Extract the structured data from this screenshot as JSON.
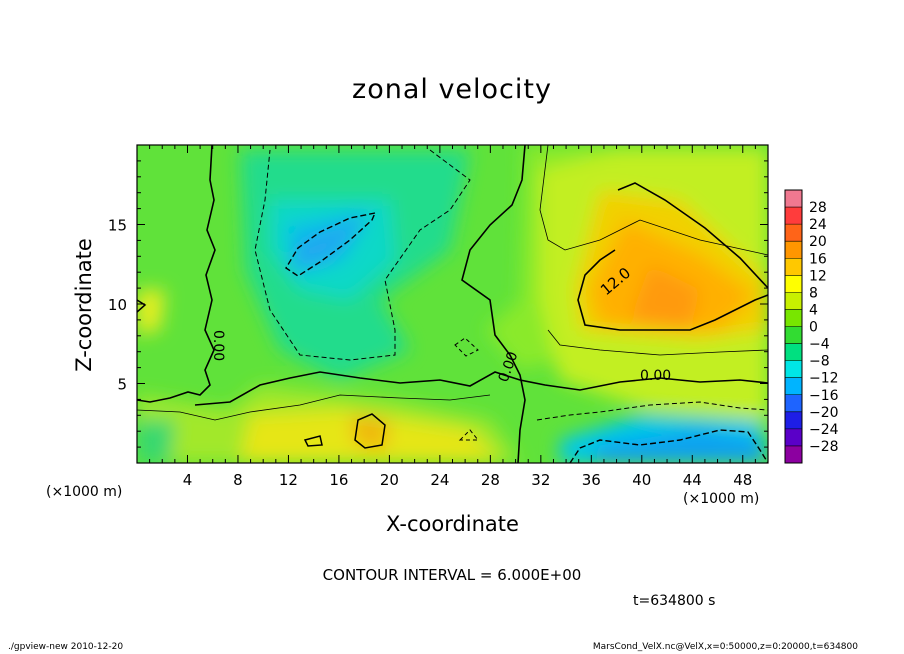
{
  "chart_data": {
    "type": "heatmap",
    "title": "zonal velocity",
    "xlabel": "X-coordinate",
    "ylabel": "Z-coordinate",
    "x_unit_label": "(×1000 m)",
    "xlim": [
      0,
      50
    ],
    "ylim": [
      0,
      20
    ],
    "x_ticks": [
      "4",
      "8",
      "12",
      "16",
      "20",
      "24",
      "28",
      "32",
      "36",
      "40",
      "44",
      "48"
    ],
    "x_tick_values": [
      4,
      8,
      12,
      16,
      20,
      24,
      28,
      32,
      36,
      40,
      44,
      48
    ],
    "y_ticks": [
      "5",
      "10",
      "15"
    ],
    "y_tick_values": [
      5,
      10,
      15
    ],
    "colorbar": {
      "labels": [
        "28",
        "24",
        "20",
        "16",
        "12",
        "8",
        "4",
        "0",
        "−4",
        "−8",
        "−12",
        "−16",
        "−20",
        "−24",
        "−28"
      ],
      "colors": [
        "#f07890",
        "#ff3c3c",
        "#ff6418",
        "#ff9600",
        "#ffc800",
        "#ffff00",
        "#c8f000",
        "#78e600",
        "#32dc32",
        "#00e080",
        "#00e6e6",
        "#00b4ff",
        "#1e64ff",
        "#1e1ee6",
        "#5a00c8",
        "#8c00a0"
      ]
    },
    "contour_labels": [
      "12.0",
      "0.00",
      "0.00",
      "0.00",
      "0.00"
    ],
    "contour_interval": "CONTOUR INTERVAL = 6.000E+00",
    "time": "t=634800 s",
    "features": [
      {
        "name": "positive-core",
        "x": 42,
        "z": 11,
        "value": 16
      },
      {
        "name": "negative-core-upper",
        "x": 15,
        "z": 14,
        "value": -10
      },
      {
        "name": "negative-core-lower",
        "x": 43,
        "z": 1.5,
        "value": -14
      },
      {
        "name": "positive-core-lower",
        "x": 18.5,
        "z": 2,
        "value": 12
      }
    ]
  },
  "footer": {
    "left": "./gpview-new   2010-12-20",
    "right": "MarsCond_VelX.nc@VelX,x=0:50000,z=0:20000,t=634800"
  }
}
